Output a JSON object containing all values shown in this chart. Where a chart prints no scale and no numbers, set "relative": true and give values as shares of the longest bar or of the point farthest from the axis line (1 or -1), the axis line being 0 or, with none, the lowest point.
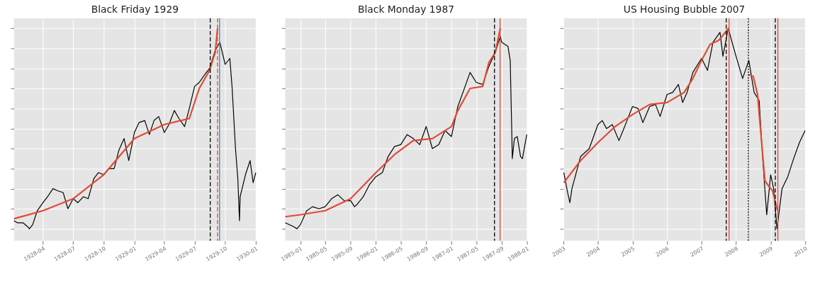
{
  "chart_data": [
    {
      "type": "line",
      "title": "Black Friday 1929",
      "relative": true,
      "grid": true,
      "tick_labels": "x",
      "xlim": [
        "1928-01-05",
        "1930-01-01"
      ],
      "xticks": [
        "1928-04",
        "1928-07",
        "1928-10",
        "1929-01",
        "1929-04",
        "1929-07",
        "1929-10",
        "1930-01"
      ],
      "series": [
        {
          "color": "#000000",
          "x": [
            "1928-01-05",
            "1928-01-15",
            "1928-02-01",
            "1928-02-15",
            "1928-02-20",
            "1928-03-01",
            "1928-03-15",
            "1928-04-01",
            "1928-04-15",
            "1928-05-01",
            "1928-05-15",
            "1928-06-01",
            "1928-06-15",
            "1928-07-01",
            "1928-07-15",
            "1928-08-01",
            "1928-08-15",
            "1928-09-01",
            "1928-09-15",
            "1928-10-01",
            "1928-10-15",
            "1928-11-01",
            "1928-11-15",
            "1928-12-01",
            "1928-12-15",
            "1929-01-01",
            "1929-01-15",
            "1929-02-01",
            "1929-02-15",
            "1929-03-01",
            "1929-03-15",
            "1929-04-01",
            "1929-04-15",
            "1929-05-01",
            "1929-05-15",
            "1929-06-01",
            "1929-06-15",
            "1929-07-01",
            "1929-07-15",
            "1929-08-01",
            "1929-08-15",
            "1929-09-01",
            "1929-09-15",
            "1929-10-01",
            "1929-10-15",
            "1929-10-22",
            "1929-11-01",
            "1929-11-08",
            "1929-11-13",
            "1929-11-15",
            "1929-12-01",
            "1929-12-15",
            "1929-12-24",
            "1930-01-01"
          ],
          "values": [
            0.04,
            0.03,
            0.03,
            0.01,
            0.0,
            0.02,
            0.09,
            0.13,
            0.16,
            0.2,
            0.19,
            0.18,
            0.1,
            0.15,
            0.13,
            0.16,
            0.15,
            0.25,
            0.28,
            0.27,
            0.3,
            0.3,
            0.39,
            0.45,
            0.34,
            0.48,
            0.53,
            0.54,
            0.47,
            0.54,
            0.56,
            0.48,
            0.52,
            0.59,
            0.55,
            0.51,
            0.6,
            0.71,
            0.73,
            0.77,
            0.8,
            0.89,
            0.93,
            0.82,
            0.85,
            0.7,
            0.4,
            0.25,
            0.04,
            0.16,
            0.27,
            0.34,
            0.23,
            0.28
          ]
        },
        {
          "color": "#e24a33",
          "x": [
            "1928-01-05",
            "1928-04-01",
            "1928-07-01",
            "1928-10-01",
            "1929-01-01",
            "1929-04-01",
            "1929-06-15",
            "1929-07-15",
            "1929-08-15",
            "1929-09-01",
            "1929-09-08"
          ],
          "values": [
            0.05,
            0.09,
            0.15,
            0.27,
            0.45,
            0.52,
            0.55,
            0.7,
            0.79,
            0.88,
            1.0
          ]
        }
      ],
      "ref_lines": [
        {
          "axis": "x",
          "value": "1929-08-17",
          "color": "#000000",
          "line_style": "dashed"
        },
        {
          "axis": "x",
          "value": "1929-09-08",
          "color": "#e24a33",
          "line_style": "dashed"
        },
        {
          "axis": "x",
          "value": "1929-09-14",
          "color": "#348abd",
          "line_style": "solid"
        }
      ]
    },
    {
      "type": "line",
      "title": "Black Monday 1987",
      "relative": true,
      "grid": true,
      "tick_labels": "x",
      "xlim": [
        "1984-10-20",
        "1988-01-01"
      ],
      "xticks": [
        "1985-01",
        "1985-05",
        "1985-09",
        "1986-01",
        "1986-05",
        "1986-09",
        "1987-01",
        "1987-05",
        "1987-09",
        "1988-01"
      ],
      "series": [
        {
          "color": "#000000",
          "x": [
            "1984-10-20",
            "1984-12-01",
            "1984-12-15",
            "1985-01-01",
            "1985-02-01",
            "1985-03-01",
            "1985-04-01",
            "1985-05-01",
            "1985-06-01",
            "1985-07-01",
            "1985-08-01",
            "1985-09-01",
            "1985-09-20",
            "1985-10-01",
            "1985-11-01",
            "1985-12-01",
            "1986-01-01",
            "1986-02-01",
            "1986-03-01",
            "1986-04-01",
            "1986-05-01",
            "1986-06-01",
            "1986-07-01",
            "1986-08-01",
            "1986-09-01",
            "1986-10-01",
            "1986-11-01",
            "1986-12-01",
            "1987-01-01",
            "1987-02-01",
            "1987-03-01",
            "1987-04-01",
            "1987-05-01",
            "1987-06-01",
            "1987-07-01",
            "1987-08-01",
            "1987-08-25",
            "1987-09-01",
            "1987-10-01",
            "1987-10-12",
            "1987-10-19",
            "1987-10-22",
            "1987-11-01",
            "1987-11-15",
            "1987-12-01",
            "1987-12-10",
            "1987-12-31"
          ],
          "values": [
            0.03,
            0.01,
            0.0,
            0.02,
            0.09,
            0.11,
            0.1,
            0.11,
            0.15,
            0.17,
            0.14,
            0.14,
            0.11,
            0.12,
            0.16,
            0.22,
            0.26,
            0.28,
            0.36,
            0.41,
            0.42,
            0.47,
            0.45,
            0.42,
            0.51,
            0.4,
            0.42,
            0.49,
            0.46,
            0.61,
            0.69,
            0.78,
            0.73,
            0.72,
            0.81,
            0.88,
            0.96,
            0.93,
            0.91,
            0.84,
            0.51,
            0.35,
            0.45,
            0.46,
            0.36,
            0.35,
            0.47
          ]
        },
        {
          "color": "#e24a33",
          "x": [
            "1984-10-20",
            "1985-01-01",
            "1985-05-01",
            "1985-09-01",
            "1986-01-01",
            "1986-04-01",
            "1986-07-01",
            "1986-10-01",
            "1987-01-01",
            "1987-02-01",
            "1987-04-01",
            "1987-06-01",
            "1987-07-01",
            "1987-08-01",
            "1987-08-25"
          ],
          "values": [
            0.06,
            0.07,
            0.09,
            0.15,
            0.28,
            0.37,
            0.44,
            0.45,
            0.51,
            0.59,
            0.7,
            0.71,
            0.83,
            0.88,
            1.0
          ]
        }
      ],
      "ref_lines": [
        {
          "axis": "x",
          "value": "1987-07-28",
          "color": "#000000",
          "line_style": "dashed"
        },
        {
          "axis": "x",
          "value": "1987-08-24",
          "color": "#e24a33",
          "line_style": "solid"
        }
      ]
    },
    {
      "type": "line",
      "title": "US Housing Bubble 2007",
      "relative": true,
      "grid": true,
      "tick_labels": "x",
      "xlim": [
        "2003-01-01",
        "2010-01-01"
      ],
      "xticks": [
        "2003",
        "2004",
        "2005",
        "2006",
        "2007",
        "2008",
        "2009",
        "2010"
      ],
      "series": [
        {
          "color": "#000000",
          "x": [
            "2003-01-05",
            "2003-02-15",
            "2003-03-10",
            "2003-04-01",
            "2003-07-01",
            "2003-10-01",
            "2004-01-01",
            "2004-02-15",
            "2004-04-01",
            "2004-06-01",
            "2004-08-10",
            "2004-10-01",
            "2004-11-20",
            "2005-01-01",
            "2005-03-01",
            "2005-04-20",
            "2005-07-01",
            "2005-09-01",
            "2005-10-20",
            "2006-01-01",
            "2006-03-01",
            "2006-05-01",
            "2006-06-15",
            "2006-08-01",
            "2006-10-01",
            "2007-01-01",
            "2007-03-05",
            "2007-05-01",
            "2007-07-15",
            "2007-08-15",
            "2007-10-10",
            "2007-11-20",
            "2008-01-01",
            "2008-03-10",
            "2008-05-15",
            "2008-07-10",
            "2008-09-01",
            "2008-10-10",
            "2008-11-20",
            "2009-01-01",
            "2009-02-01",
            "2009-03-09",
            "2009-05-01",
            "2009-07-01",
            "2009-09-01",
            "2009-11-01",
            "2009-12-31"
          ],
          "values": [
            0.28,
            0.18,
            0.13,
            0.2,
            0.36,
            0.4,
            0.52,
            0.54,
            0.5,
            0.52,
            0.44,
            0.5,
            0.56,
            0.61,
            0.6,
            0.53,
            0.61,
            0.62,
            0.56,
            0.67,
            0.68,
            0.72,
            0.63,
            0.68,
            0.78,
            0.85,
            0.79,
            0.93,
            0.98,
            0.86,
            1.0,
            0.93,
            0.86,
            0.75,
            0.84,
            0.68,
            0.64,
            0.34,
            0.07,
            0.27,
            0.2,
            0.0,
            0.2,
            0.26,
            0.35,
            0.43,
            0.49
          ]
        },
        {
          "color": "#e24a33",
          "x": [
            "2003-01-05",
            "2003-07-01",
            "2004-01-01",
            "2004-07-01",
            "2005-01-01",
            "2005-07-01",
            "2006-01-01",
            "2006-07-01",
            "2006-10-01",
            "2007-01-01",
            "2007-04-01",
            "2007-07-01",
            "2007-10-15"
          ],
          "values": [
            0.23,
            0.34,
            0.43,
            0.51,
            0.57,
            0.62,
            0.63,
            0.68,
            0.75,
            0.84,
            0.92,
            0.94,
            1.0
          ]
        },
        {
          "color": "#e24a33",
          "x": [
            "2008-05-10",
            "2008-07-01",
            "2008-08-15",
            "2008-10-01",
            "2008-11-01",
            "2008-12-15",
            "2009-01-20",
            "2009-03-15"
          ],
          "values": [
            0.77,
            0.76,
            0.67,
            0.41,
            0.24,
            0.21,
            0.19,
            0.09
          ]
        }
      ],
      "ref_lines": [
        {
          "axis": "x",
          "value": "2007-09-19",
          "color": "#000000",
          "line_style": "dashed"
        },
        {
          "axis": "x",
          "value": "2007-10-19",
          "color": "#e24a33",
          "line_style": "solid"
        },
        {
          "axis": "x",
          "value": "2008-05-10",
          "color": "#000000",
          "line_style": "dotted"
        },
        {
          "axis": "x",
          "value": "2009-02-19",
          "color": "#000000",
          "line_style": "dashed"
        },
        {
          "axis": "x",
          "value": "2009-03-18",
          "color": "#e24a33",
          "line_style": "solid"
        }
      ]
    }
  ]
}
